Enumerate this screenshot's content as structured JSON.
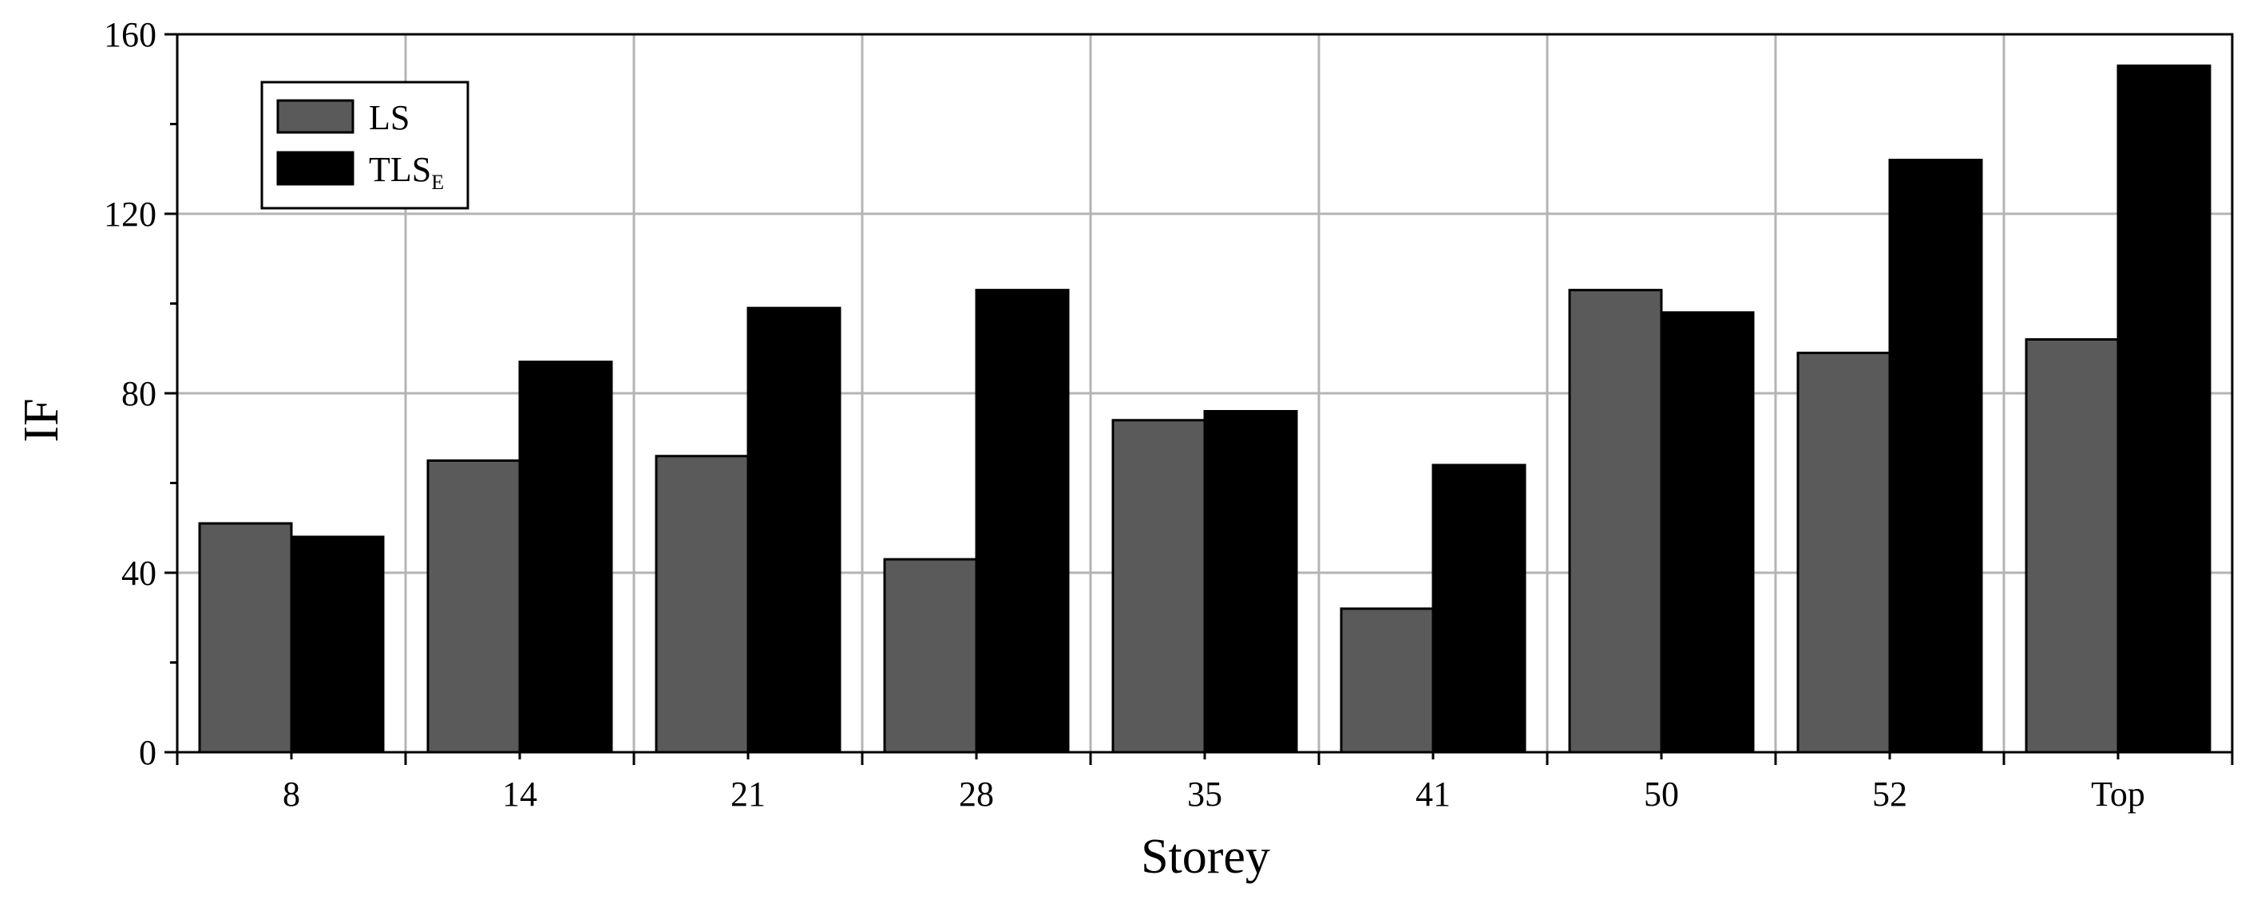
{
  "chart_data": {
    "type": "bar",
    "title": "",
    "xlabel": "Storey",
    "ylabel": "IF",
    "categories": [
      "8",
      "14",
      "21",
      "28",
      "35",
      "41",
      "50",
      "52",
      "Top"
    ],
    "series": [
      {
        "name": "LS",
        "color": "#5a5a5a",
        "values": [
          51,
          65,
          66,
          43,
          74,
          32,
          103,
          89,
          92
        ]
      },
      {
        "name": "TLS",
        "name_subscript": "E",
        "color": "#000000",
        "values": [
          48,
          87,
          99,
          103,
          76,
          64,
          98,
          132,
          153
        ]
      }
    ],
    "ylim": [
      0,
      160
    ],
    "yticks": [
      0,
      40,
      80,
      120,
      160
    ],
    "grid": true,
    "legend_position": "top-left"
  }
}
